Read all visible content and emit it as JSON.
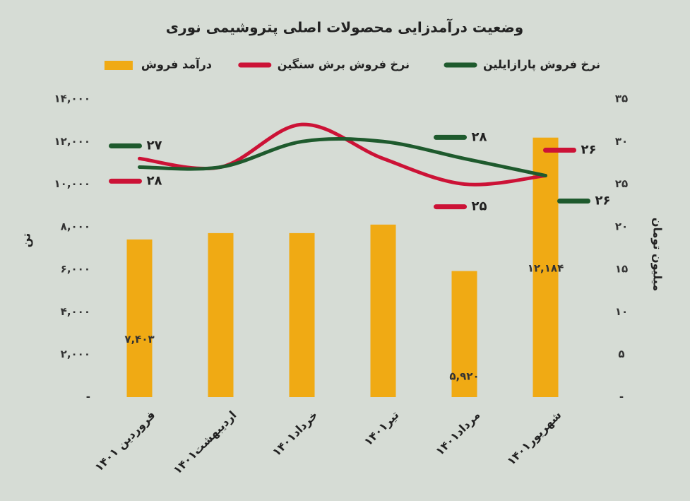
{
  "chart_data": {
    "type": "bar-line",
    "title": "وضعیت درآمدزایی محصولات اصلی پتروشیمی نوری",
    "y_label": "تن",
    "y2_label": "میلیون تومان",
    "categories": [
      "فروردین ۱۴۰۱",
      "اردیبهشت۱۴۰۱",
      "خرداد۱۴۰۱",
      "تیر۱۴۰۱",
      "مرداد۱۴۰۱",
      "شهریور۱۴۰۱"
    ],
    "ylim": [
      0,
      14000
    ],
    "yticks": [
      {
        "value": 0,
        "label": "-"
      },
      {
        "value": 2000,
        "label": "۲,۰۰۰"
      },
      {
        "value": 4000,
        "label": "۴,۰۰۰"
      },
      {
        "value": 6000,
        "label": "۶,۰۰۰"
      },
      {
        "value": 8000,
        "label": "۸,۰۰۰"
      },
      {
        "value": 10000,
        "label": "۱۰,۰۰۰"
      },
      {
        "value": 12000,
        "label": "۱۲,۰۰۰"
      },
      {
        "value": 14000,
        "label": "۱۴,۰۰۰"
      }
    ],
    "y2lim": [
      0,
      35
    ],
    "y2ticks": [
      {
        "value": 0,
        "label": "-"
      },
      {
        "value": 5,
        "label": "۵"
      },
      {
        "value": 10,
        "label": "۱۰"
      },
      {
        "value": 15,
        "label": "۱۵"
      },
      {
        "value": 20,
        "label": "۲۰"
      },
      {
        "value": 25,
        "label": "۲۵"
      },
      {
        "value": 30,
        "label": "۳۰"
      },
      {
        "value": 35,
        "label": "۳۵"
      }
    ],
    "series": [
      {
        "name": "درآمد فروش",
        "type": "bar",
        "color": "#f0aa14",
        "axis": "y",
        "values": [
          7403,
          7700,
          7700,
          8100,
          5920,
          12184
        ],
        "value_labels": [
          "۷,۴۰۳",
          null,
          null,
          null,
          "۵,۹۲۰",
          "۱۲,۱۸۴"
        ]
      },
      {
        "name": "نرخ فروش برش سنگین",
        "type": "line",
        "color": "#cc1236",
        "axis": "y2",
        "values": [
          28,
          27,
          32,
          28,
          25,
          26
        ],
        "value_labels": [
          "۲۸",
          null,
          null,
          null,
          "۲۵",
          "۲۶"
        ]
      },
      {
        "name": "نرخ فروش پارازایلین",
        "type": "line",
        "color": "#1e5a2d",
        "axis": "y2",
        "values": [
          27,
          27,
          30,
          30,
          28,
          26
        ],
        "value_labels": [
          "۲۷",
          null,
          null,
          null,
          "۲۸",
          "۲۶"
        ]
      }
    ]
  }
}
